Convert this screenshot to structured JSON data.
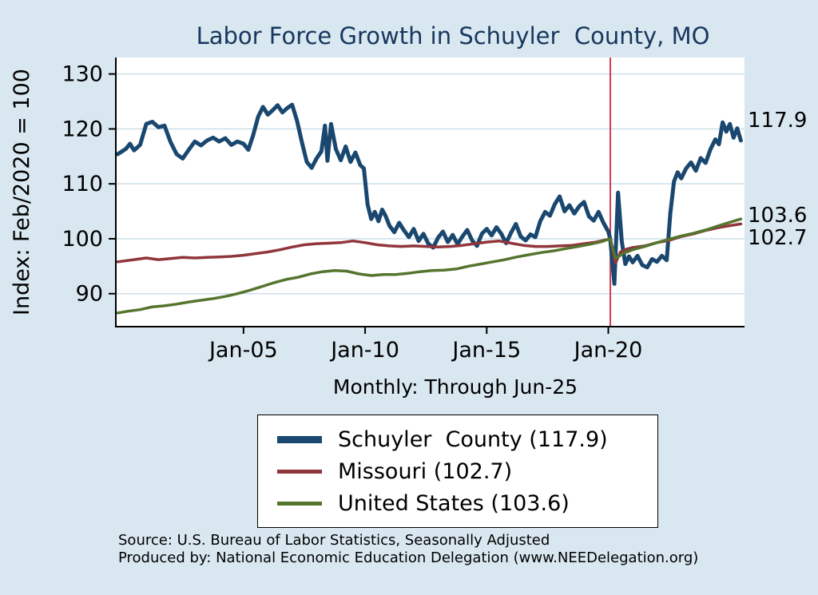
{
  "title": "Labor Force Growth in Schuyler  County, MO",
  "y_axis_title": "Index: Feb/2020 = 100",
  "x_axis_subtitle": "Monthly: Through Jun-25",
  "source_line1": "Source: U.S. Bureau of Labor Statistics, Seasonally Adjusted",
  "source_line2": "Produced by: National Economic Education Delegation (www.NEEDelegation.org)",
  "colors": {
    "background": "#d9e7f0",
    "plot_background": "#ffffff",
    "title": "#17375e",
    "axis": "#000000",
    "grid": "#ccdfe9",
    "reference_line": "#cc3e55",
    "schuyler_county": "#1a476f",
    "missouri": "#90353b",
    "united_states": "#55752f"
  },
  "chart_data": {
    "type": "line",
    "title": "Labor Force Growth in Schuyler  County, MO",
    "xlabel": "Monthly: Through Jun-25",
    "ylabel": "Index: Feb/2020 = 100",
    "grid": true,
    "legend_position": "bottom-center",
    "x_axis": {
      "range": [
        1999.75,
        2025.6
      ],
      "ticks": [
        {
          "value": 2005,
          "label": "Jan-05"
        },
        {
          "value": 2010,
          "label": "Jan-10"
        },
        {
          "value": 2015,
          "label": "Jan-15"
        },
        {
          "value": 2020,
          "label": "Jan-20"
        }
      ]
    },
    "y_axis": {
      "range": [
        84,
        133
      ],
      "ticks": [
        90,
        100,
        110,
        120,
        130
      ]
    },
    "reference_line": {
      "x": 2020.083,
      "color": "#cc3e55"
    },
    "series": [
      {
        "id": "schuyler-county",
        "name": "Schuyler County",
        "legend_label": "Schuyler  County (117.9)",
        "latest_label": "117.9",
        "latest_value": 117.9,
        "color": "#1a476f",
        "line_width": 5,
        "points": [
          [
            1999.83,
            115.4
          ],
          [
            2000.0,
            115.9
          ],
          [
            2000.17,
            116.4
          ],
          [
            2000.33,
            117.3
          ],
          [
            2000.5,
            116.1
          ],
          [
            2000.75,
            117.1
          ],
          [
            2001.0,
            120.9
          ],
          [
            2001.25,
            121.3
          ],
          [
            2001.5,
            120.3
          ],
          [
            2001.75,
            120.6
          ],
          [
            2002.0,
            117.6
          ],
          [
            2002.25,
            115.4
          ],
          [
            2002.5,
            114.6
          ],
          [
            2002.75,
            116.2
          ],
          [
            2003.0,
            117.7
          ],
          [
            2003.25,
            117.0
          ],
          [
            2003.5,
            117.9
          ],
          [
            2003.75,
            118.4
          ],
          [
            2004.0,
            117.7
          ],
          [
            2004.25,
            118.3
          ],
          [
            2004.5,
            117.1
          ],
          [
            2004.75,
            117.7
          ],
          [
            2005.0,
            117.3
          ],
          [
            2005.2,
            116.2
          ],
          [
            2005.4,
            118.9
          ],
          [
            2005.6,
            122.2
          ],
          [
            2005.8,
            124.0
          ],
          [
            2006.0,
            122.6
          ],
          [
            2006.2,
            123.4
          ],
          [
            2006.4,
            124.3
          ],
          [
            2006.6,
            123.0
          ],
          [
            2006.8,
            123.8
          ],
          [
            2007.0,
            124.4
          ],
          [
            2007.2,
            121.5
          ],
          [
            2007.4,
            117.6
          ],
          [
            2007.6,
            114.0
          ],
          [
            2007.8,
            112.9
          ],
          [
            2008.0,
            114.6
          ],
          [
            2008.2,
            115.9
          ],
          [
            2008.35,
            120.6
          ],
          [
            2008.45,
            114.2
          ],
          [
            2008.6,
            120.9
          ],
          [
            2008.8,
            116.3
          ],
          [
            2009.0,
            114.3
          ],
          [
            2009.2,
            116.8
          ],
          [
            2009.4,
            114.0
          ],
          [
            2009.6,
            115.7
          ],
          [
            2009.8,
            113.4
          ],
          [
            2009.95,
            112.8
          ],
          [
            2010.1,
            106.3
          ],
          [
            2010.25,
            103.6
          ],
          [
            2010.4,
            104.9
          ],
          [
            2010.55,
            103.2
          ],
          [
            2010.7,
            105.3
          ],
          [
            2010.85,
            104.1
          ],
          [
            2011.0,
            102.4
          ],
          [
            2011.2,
            101.2
          ],
          [
            2011.4,
            102.9
          ],
          [
            2011.6,
            101.5
          ],
          [
            2011.8,
            100.3
          ],
          [
            2012.0,
            101.8
          ],
          [
            2012.2,
            99.6
          ],
          [
            2012.4,
            100.9
          ],
          [
            2012.6,
            99.1
          ],
          [
            2012.8,
            98.4
          ],
          [
            2013.0,
            100.2
          ],
          [
            2013.2,
            101.3
          ],
          [
            2013.4,
            99.4
          ],
          [
            2013.6,
            100.7
          ],
          [
            2013.8,
            99.0
          ],
          [
            2014.0,
            100.4
          ],
          [
            2014.2,
            101.6
          ],
          [
            2014.4,
            99.7
          ],
          [
            2014.6,
            98.7
          ],
          [
            2014.8,
            100.9
          ],
          [
            2015.0,
            101.8
          ],
          [
            2015.2,
            100.6
          ],
          [
            2015.4,
            102.1
          ],
          [
            2015.6,
            100.9
          ],
          [
            2015.8,
            99.2
          ],
          [
            2016.0,
            101.1
          ],
          [
            2016.2,
            102.7
          ],
          [
            2016.4,
            100.4
          ],
          [
            2016.6,
            99.7
          ],
          [
            2016.8,
            100.8
          ],
          [
            2017.0,
            100.3
          ],
          [
            2017.2,
            103.2
          ],
          [
            2017.4,
            104.9
          ],
          [
            2017.6,
            104.2
          ],
          [
            2017.8,
            106.3
          ],
          [
            2018.0,
            107.7
          ],
          [
            2018.2,
            105.0
          ],
          [
            2018.4,
            106.1
          ],
          [
            2018.6,
            104.6
          ],
          [
            2018.8,
            105.9
          ],
          [
            2019.0,
            106.7
          ],
          [
            2019.2,
            104.1
          ],
          [
            2019.4,
            103.3
          ],
          [
            2019.6,
            104.9
          ],
          [
            2019.8,
            102.9
          ],
          [
            2020.0,
            101.3
          ],
          [
            2020.08,
            100.0
          ],
          [
            2020.25,
            91.8
          ],
          [
            2020.4,
            108.4
          ],
          [
            2020.55,
            99.6
          ],
          [
            2020.7,
            95.4
          ],
          [
            2020.85,
            96.8
          ],
          [
            2021.0,
            95.7
          ],
          [
            2021.2,
            96.9
          ],
          [
            2021.4,
            95.2
          ],
          [
            2021.6,
            94.8
          ],
          [
            2021.8,
            96.3
          ],
          [
            2022.0,
            95.8
          ],
          [
            2022.2,
            96.9
          ],
          [
            2022.4,
            96.1
          ],
          [
            2022.55,
            104.6
          ],
          [
            2022.7,
            110.4
          ],
          [
            2022.85,
            112.1
          ],
          [
            2023.0,
            111.0
          ],
          [
            2023.2,
            112.8
          ],
          [
            2023.4,
            113.9
          ],
          [
            2023.6,
            112.4
          ],
          [
            2023.8,
            114.7
          ],
          [
            2024.0,
            113.8
          ],
          [
            2024.2,
            116.3
          ],
          [
            2024.4,
            118.1
          ],
          [
            2024.55,
            117.2
          ],
          [
            2024.7,
            121.2
          ],
          [
            2024.85,
            119.5
          ],
          [
            2025.0,
            120.9
          ],
          [
            2025.15,
            118.4
          ],
          [
            2025.3,
            120.1
          ],
          [
            2025.45,
            117.9
          ]
        ]
      },
      {
        "id": "missouri",
        "name": "Missouri",
        "legend_label": "Missouri (102.7)",
        "latest_label": "102.7",
        "latest_value": 102.7,
        "color": "#90353b",
        "line_width": 3.5,
        "points": [
          [
            1999.83,
            95.8
          ],
          [
            2000.5,
            96.2
          ],
          [
            2001.0,
            96.5
          ],
          [
            2001.5,
            96.2
          ],
          [
            2002.0,
            96.4
          ],
          [
            2002.5,
            96.6
          ],
          [
            2003.0,
            96.5
          ],
          [
            2003.5,
            96.6
          ],
          [
            2004.0,
            96.7
          ],
          [
            2004.5,
            96.8
          ],
          [
            2005.0,
            97.0
          ],
          [
            2005.5,
            97.3
          ],
          [
            2006.0,
            97.6
          ],
          [
            2006.5,
            98.0
          ],
          [
            2007.0,
            98.5
          ],
          [
            2007.5,
            98.9
          ],
          [
            2008.0,
            99.1
          ],
          [
            2008.5,
            99.2
          ],
          [
            2009.0,
            99.3
          ],
          [
            2009.5,
            99.6
          ],
          [
            2010.0,
            99.3
          ],
          [
            2010.5,
            98.9
          ],
          [
            2011.0,
            98.7
          ],
          [
            2011.5,
            98.6
          ],
          [
            2012.0,
            98.7
          ],
          [
            2012.5,
            98.6
          ],
          [
            2013.0,
            98.5
          ],
          [
            2013.5,
            98.6
          ],
          [
            2014.0,
            98.8
          ],
          [
            2014.5,
            99.1
          ],
          [
            2015.0,
            99.4
          ],
          [
            2015.5,
            99.6
          ],
          [
            2016.0,
            99.2
          ],
          [
            2016.5,
            98.8
          ],
          [
            2017.0,
            98.6
          ],
          [
            2017.5,
            98.6
          ],
          [
            2018.0,
            98.7
          ],
          [
            2018.5,
            98.8
          ],
          [
            2019.0,
            99.1
          ],
          [
            2019.5,
            99.4
          ],
          [
            2020.0,
            99.9
          ],
          [
            2020.08,
            100.0
          ],
          [
            2020.3,
            95.6
          ],
          [
            2020.5,
            97.6
          ],
          [
            2020.75,
            98.1
          ],
          [
            2021.0,
            98.4
          ],
          [
            2021.5,
            98.7
          ],
          [
            2022.0,
            99.3
          ],
          [
            2022.5,
            99.7
          ],
          [
            2023.0,
            100.4
          ],
          [
            2023.5,
            100.9
          ],
          [
            2024.0,
            101.5
          ],
          [
            2024.5,
            102.0
          ],
          [
            2025.0,
            102.4
          ],
          [
            2025.45,
            102.7
          ]
        ]
      },
      {
        "id": "united-states",
        "name": "United States",
        "legend_label": "United States (103.6)",
        "latest_label": "103.6",
        "latest_value": 103.6,
        "color": "#55752f",
        "line_width": 3.5,
        "points": [
          [
            1999.83,
            86.5
          ],
          [
            2000.25,
            86.8
          ],
          [
            2000.75,
            87.1
          ],
          [
            2001.25,
            87.6
          ],
          [
            2001.75,
            87.8
          ],
          [
            2002.25,
            88.1
          ],
          [
            2002.75,
            88.5
          ],
          [
            2003.25,
            88.8
          ],
          [
            2003.75,
            89.1
          ],
          [
            2004.25,
            89.5
          ],
          [
            2004.75,
            90.0
          ],
          [
            2005.25,
            90.6
          ],
          [
            2005.75,
            91.3
          ],
          [
            2006.25,
            92.0
          ],
          [
            2006.75,
            92.6
          ],
          [
            2007.25,
            93.0
          ],
          [
            2007.75,
            93.6
          ],
          [
            2008.25,
            94.0
          ],
          [
            2008.75,
            94.2
          ],
          [
            2009.25,
            94.1
          ],
          [
            2009.75,
            93.6
          ],
          [
            2010.25,
            93.3
          ],
          [
            2010.75,
            93.5
          ],
          [
            2011.25,
            93.5
          ],
          [
            2011.75,
            93.7
          ],
          [
            2012.25,
            94.0
          ],
          [
            2012.75,
            94.2
          ],
          [
            2013.25,
            94.3
          ],
          [
            2013.75,
            94.5
          ],
          [
            2014.25,
            95.0
          ],
          [
            2014.75,
            95.4
          ],
          [
            2015.25,
            95.8
          ],
          [
            2015.75,
            96.2
          ],
          [
            2016.25,
            96.7
          ],
          [
            2016.75,
            97.1
          ],
          [
            2017.25,
            97.5
          ],
          [
            2017.75,
            97.8
          ],
          [
            2018.25,
            98.2
          ],
          [
            2018.75,
            98.6
          ],
          [
            2019.25,
            99.0
          ],
          [
            2019.75,
            99.5
          ],
          [
            2020.0,
            99.9
          ],
          [
            2020.08,
            100.0
          ],
          [
            2020.3,
            96.4
          ],
          [
            2020.6,
            97.3
          ],
          [
            2021.0,
            98.0
          ],
          [
            2021.5,
            98.6
          ],
          [
            2022.0,
            99.3
          ],
          [
            2022.5,
            99.9
          ],
          [
            2023.0,
            100.5
          ],
          [
            2023.5,
            101.0
          ],
          [
            2024.0,
            101.6
          ],
          [
            2024.5,
            102.3
          ],
          [
            2025.0,
            103.0
          ],
          [
            2025.45,
            103.6
          ]
        ]
      }
    ]
  }
}
